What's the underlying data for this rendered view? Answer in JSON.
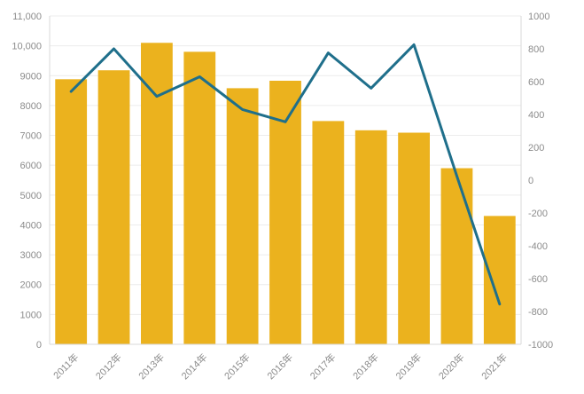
{
  "chart_data": {
    "type": "bar+line",
    "categories": [
      "2011年",
      "2012年",
      "2013年",
      "2014年",
      "2015年",
      "2016年",
      "2017年",
      "2018年",
      "2019年",
      "2020年",
      "2021年"
    ],
    "series": [
      {
        "type": "bar",
        "axis": "left",
        "values": [
          8880,
          9180,
          10100,
          9800,
          8580,
          8830,
          7480,
          7170,
          7090,
          5900,
          4300
        ]
      },
      {
        "type": "line",
        "axis": "right",
        "values": [
          540,
          800,
          510,
          630,
          430,
          355,
          775,
          560,
          825,
          25,
          -755
        ]
      }
    ],
    "left_axis": {
      "min": 0,
      "max": 11000,
      "ticks": [
        "0",
        "1000",
        "2000",
        "3000",
        "4000",
        "5000",
        "6000",
        "7000",
        "8000",
        "9000",
        "10,000",
        "11,000"
      ]
    },
    "right_axis": {
      "min": -1000,
      "max": 1000,
      "ticks": [
        "-1000",
        "-800",
        "-600",
        "-400",
        "-200",
        "0",
        "200",
        "400",
        "600",
        "800",
        "1000"
      ]
    },
    "grid": true,
    "colors": {
      "bar": "#ebb21e",
      "line": "#1f6f8b"
    }
  }
}
